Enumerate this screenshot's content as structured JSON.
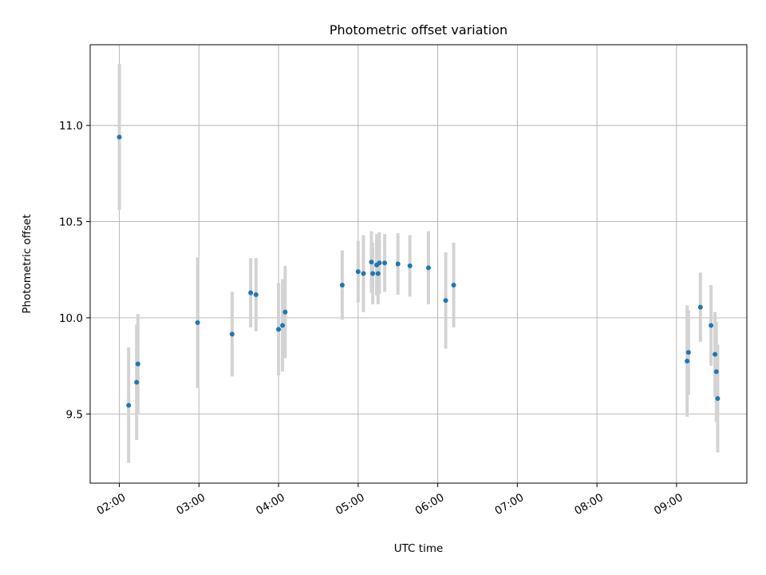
{
  "chart_data": {
    "type": "scatter",
    "title": "Photometric offset variation",
    "xlabel": "UTC time",
    "ylabel": "Photometric offset",
    "xlim": [
      "01:38",
      "09:53"
    ],
    "ylim": [
      9.14,
      11.42
    ],
    "grid": true,
    "x_ticks": [
      "02:00",
      "03:00",
      "04:00",
      "05:00",
      "06:00",
      "07:00",
      "08:00",
      "09:00"
    ],
    "y_ticks": [
      9.5,
      10.0,
      10.5,
      11.0
    ],
    "y_tick_labels": [
      "9.5",
      "10.0",
      "10.5",
      "11.0"
    ],
    "point_color": "#1f77b4",
    "errorbar_color": "#d3d3d3",
    "points": [
      {
        "x": "02:00",
        "y": 10.94,
        "err": 0.38
      },
      {
        "x": "02:07",
        "y": 9.545,
        "err": 0.3
      },
      {
        "x": "02:13",
        "y": 9.665,
        "err": 0.3
      },
      {
        "x": "02:14",
        "y": 9.76,
        "err": 0.26
      },
      {
        "x": "02:59",
        "y": 9.975,
        "err": 0.34
      },
      {
        "x": "03:25",
        "y": 9.915,
        "err": 0.22
      },
      {
        "x": "03:39",
        "y": 10.13,
        "err": 0.18
      },
      {
        "x": "03:43",
        "y": 10.12,
        "err": 0.19
      },
      {
        "x": "04:00",
        "y": 9.94,
        "err": 0.24
      },
      {
        "x": "04:03",
        "y": 9.96,
        "err": 0.24
      },
      {
        "x": "04:05",
        "y": 10.03,
        "err": 0.24
      },
      {
        "x": "04:48",
        "y": 10.17,
        "err": 0.18
      },
      {
        "x": "05:00",
        "y": 10.24,
        "err": 0.16
      },
      {
        "x": "05:04",
        "y": 10.23,
        "err": 0.2
      },
      {
        "x": "05:10",
        "y": 10.29,
        "err": 0.16
      },
      {
        "x": "05:11",
        "y": 10.23,
        "err": 0.16
      },
      {
        "x": "05:14",
        "y": 10.275,
        "err": 0.16
      },
      {
        "x": "05:15",
        "y": 10.23,
        "err": 0.16
      },
      {
        "x": "05:16",
        "y": 10.285,
        "err": 0.16
      },
      {
        "x": "05:20",
        "y": 10.285,
        "err": 0.15
      },
      {
        "x": "05:30",
        "y": 10.28,
        "err": 0.16
      },
      {
        "x": "05:39",
        "y": 10.27,
        "err": 0.16
      },
      {
        "x": "05:53",
        "y": 10.26,
        "err": 0.19
      },
      {
        "x": "06:06",
        "y": 10.09,
        "err": 0.25
      },
      {
        "x": "06:12",
        "y": 10.17,
        "err": 0.22
      },
      {
        "x": "09:08",
        "y": 9.775,
        "err": 0.29
      },
      {
        "x": "09:09",
        "y": 9.82,
        "err": 0.22
      },
      {
        "x": "09:18",
        "y": 10.055,
        "err": 0.18
      },
      {
        "x": "09:26",
        "y": 9.96,
        "err": 0.21
      },
      {
        "x": "09:29",
        "y": 9.81,
        "err": 0.22
      },
      {
        "x": "09:30",
        "y": 9.72,
        "err": 0.26
      },
      {
        "x": "09:31",
        "y": 9.58,
        "err": 0.28
      }
    ]
  }
}
